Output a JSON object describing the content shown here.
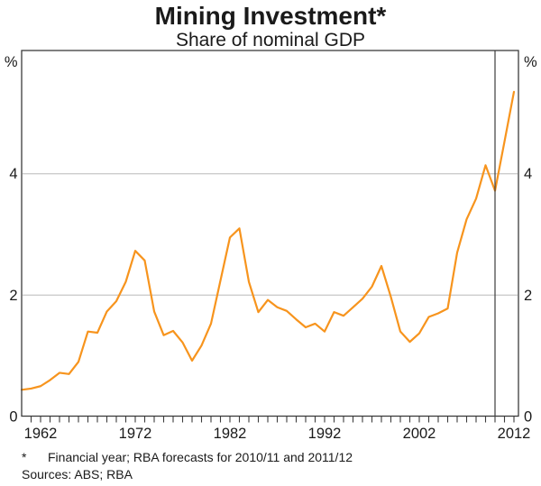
{
  "header": {
    "title": "Mining Investment*",
    "subtitle": "Share of nominal GDP"
  },
  "chart_data": {
    "type": "line",
    "title": "Mining Investment*",
    "subtitle": "Share of nominal GDP",
    "unit": "%",
    "xlabel": "",
    "ylabel": "%",
    "ylim": [
      0,
      6
    ],
    "y_gridlines": [
      2,
      4
    ],
    "y_axis_value_labels": [
      "0",
      "2",
      "4"
    ],
    "y_axis_unit_label": "%",
    "x_label_years": [
      1962,
      1972,
      1982,
      1992,
      2002,
      2012
    ],
    "x_tick_start_year": 1961,
    "x_tick_end_year": 2012,
    "grid": "horizontal-only",
    "legend_position": "none",
    "forecast_separator_year": 2010,
    "x": [
      1960,
      1961,
      1962,
      1963,
      1964,
      1965,
      1966,
      1967,
      1968,
      1969,
      1970,
      1971,
      1972,
      1973,
      1974,
      1975,
      1976,
      1977,
      1978,
      1979,
      1980,
      1981,
      1982,
      1983,
      1984,
      1985,
      1986,
      1987,
      1988,
      1989,
      1990,
      1991,
      1992,
      1993,
      1994,
      1995,
      1996,
      1997,
      1998,
      1999,
      2000,
      2001,
      2002,
      2003,
      2004,
      2005,
      2006,
      2007,
      2008,
      2009,
      2010,
      2011,
      2012
    ],
    "series": [
      {
        "name": "Mining investment (share of nominal GDP, financial years, RBA forecasts for 2010/11 and 2011/12)",
        "color": "#F7941D",
        "values": [
          0.44,
          0.46,
          0.5,
          0.6,
          0.72,
          0.7,
          0.9,
          1.4,
          1.38,
          1.73,
          1.9,
          2.22,
          2.73,
          2.57,
          1.73,
          1.34,
          1.41,
          1.22,
          0.92,
          1.17,
          1.53,
          2.24,
          2.95,
          3.1,
          2.22,
          1.72,
          1.92,
          1.8,
          1.74,
          1.6,
          1.47,
          1.53,
          1.4,
          1.72,
          1.66,
          1.8,
          1.94,
          2.14,
          2.48,
          1.97,
          1.4,
          1.23,
          1.37,
          1.64,
          1.7,
          1.78,
          2.7,
          3.25,
          3.59,
          4.14,
          3.72,
          4.53,
          5.35
        ]
      }
    ],
    "colors": {
      "line": "#F7941D",
      "grid": "#CCCCCC",
      "axis": "#3C3C3C",
      "text": "#1A1A1A"
    }
  },
  "footnote": {
    "marker": "*",
    "line1": "Financial year; RBA forecasts for 2010/11 and 2011/12",
    "line2": "Sources: ABS; RBA"
  }
}
